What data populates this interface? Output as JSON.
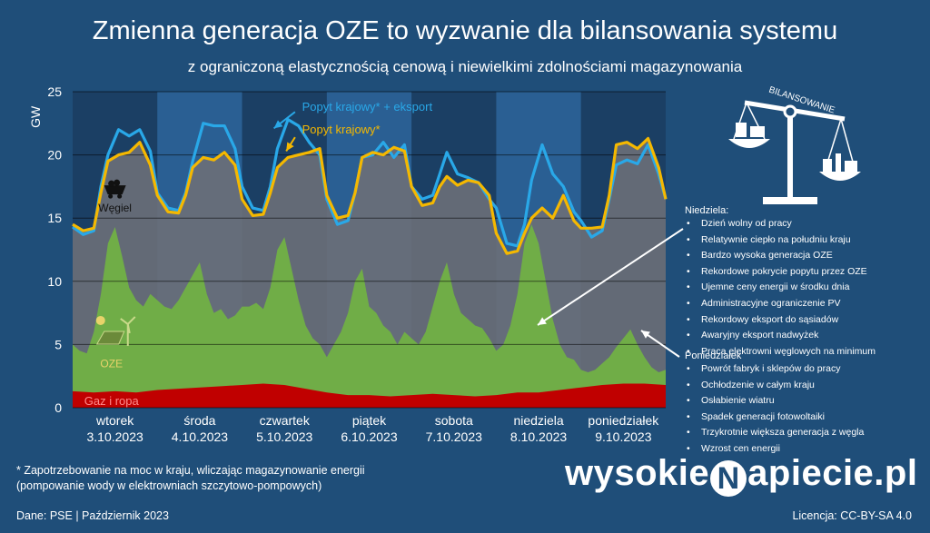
{
  "title": "Zmienna generacja OZE to wyzwanie dla bilansowania systemu",
  "subtitle": "z ograniczoną elastycznością cenową i niewielkimi zdolnościami magazynowania",
  "chart_data": {
    "type": "area",
    "ylabel": "GW",
    "ylim": [
      0,
      25
    ],
    "yticks": [
      0,
      5,
      10,
      15,
      20,
      25
    ],
    "grid": true,
    "categories": [
      {
        "day": "wtorek",
        "date": "3.10.2023"
      },
      {
        "day": "środa",
        "date": "4.10.2023"
      },
      {
        "day": "czwartek",
        "date": "5.10.2023"
      },
      {
        "day": "piątek",
        "date": "6.10.2023"
      },
      {
        "day": "sobota",
        "date": "7.10.2023"
      },
      {
        "day": "niedziela",
        "date": "8.10.2023"
      },
      {
        "day": "poniedziałek",
        "date": "9.10.2023"
      }
    ],
    "x_unit": "hours since start of 3.10.2023",
    "series": [
      {
        "name": "Popyt krajowy* + eksport",
        "type": "line",
        "color": "#29a8e8",
        "x": [
          0,
          3,
          6,
          8,
          10,
          13,
          16,
          19,
          22,
          24,
          27,
          30,
          32,
          34,
          37,
          40,
          43,
          46,
          48,
          51,
          54,
          56,
          58,
          61,
          64,
          67,
          70,
          72,
          75,
          78,
          80,
          82,
          85,
          88,
          91,
          94,
          96,
          99,
          102,
          104,
          106,
          109,
          112,
          115,
          118,
          120,
          123,
          126,
          128,
          130,
          133,
          136,
          139,
          142,
          144,
          147,
          150,
          152,
          154,
          157,
          160,
          163,
          166,
          168
        ],
        "values": [
          14.3,
          13.7,
          14,
          17.5,
          20,
          22,
          21.5,
          22,
          20.3,
          17,
          15.8,
          15.6,
          17,
          19.5,
          22.5,
          22.3,
          22.3,
          20.5,
          17.5,
          15.8,
          15.6,
          17.5,
          20.5,
          22.8,
          22.3,
          21,
          20,
          16.5,
          14.5,
          14.8,
          17,
          19.8,
          20,
          21,
          19.8,
          20.8,
          17.5,
          16.5,
          16.8,
          18.5,
          20.2,
          18.5,
          18.2,
          17.8,
          16.5,
          15.8,
          13,
          12.8,
          14.5,
          18,
          20.8,
          18.5,
          17.5,
          15.5,
          14.8,
          13.5,
          14,
          16.5,
          19.2,
          19.6,
          19.3,
          20.8,
          18.5,
          16.5
        ]
      },
      {
        "name": "Popyt krajowy*",
        "type": "line",
        "color": "#f5b800",
        "x": [
          0,
          3,
          6,
          8,
          10,
          13,
          16,
          19,
          22,
          24,
          27,
          30,
          32,
          34,
          37,
          40,
          43,
          46,
          48,
          51,
          54,
          56,
          58,
          61,
          64,
          67,
          70,
          72,
          75,
          78,
          80,
          82,
          85,
          88,
          91,
          94,
          96,
          99,
          102,
          104,
          106,
          109,
          112,
          115,
          118,
          120,
          123,
          126,
          128,
          130,
          133,
          136,
          139,
          142,
          144,
          147,
          150,
          152,
          154,
          157,
          160,
          163,
          166,
          168
        ],
        "values": [
          14.5,
          14,
          14.2,
          17,
          19.5,
          20,
          20.2,
          21,
          19.2,
          16.8,
          15.5,
          15.4,
          16.8,
          19,
          19.8,
          19.6,
          20.2,
          19.2,
          16.5,
          15.2,
          15.3,
          17,
          19,
          19.8,
          20,
          20.2,
          20.5,
          16.8,
          15,
          15.2,
          17,
          19.8,
          20.2,
          20,
          20.6,
          20.3,
          17.5,
          16,
          16.2,
          17.5,
          18.3,
          17.6,
          18,
          17.8,
          16.8,
          13.8,
          12.2,
          12.4,
          13.8,
          15,
          15.8,
          15,
          16.8,
          14.8,
          14.2,
          14.2,
          14.3,
          16.8,
          20.8,
          21,
          20.5,
          21.3,
          19,
          16.5
        ]
      },
      {
        "name": "Węgiel",
        "type": "area",
        "color": "#6b6f78",
        "x": [
          0,
          3,
          6,
          8,
          10,
          13,
          16,
          19,
          22,
          24,
          27,
          30,
          32,
          34,
          37,
          40,
          43,
          46,
          48,
          51,
          54,
          56,
          58,
          61,
          64,
          67,
          70,
          72,
          75,
          78,
          80,
          82,
          85,
          88,
          91,
          94,
          96,
          99,
          102,
          104,
          106,
          109,
          112,
          115,
          118,
          120,
          123,
          126,
          128,
          130,
          133,
          136,
          139,
          142,
          144,
          147,
          150,
          152,
          154,
          157,
          160,
          163,
          166,
          168
        ],
        "values": [
          14.5,
          14,
          14.2,
          17,
          19.5,
          20,
          20.2,
          21,
          19.2,
          16.8,
          15.5,
          15.4,
          16.8,
          19,
          19.8,
          19.6,
          20.2,
          19.2,
          16.5,
          15.2,
          15.3,
          17,
          19,
          19.8,
          20,
          20.2,
          20.5,
          16.8,
          15,
          15.2,
          17,
          19.8,
          20.2,
          20,
          20.6,
          20.3,
          17.5,
          16,
          16.2,
          17.5,
          18.3,
          17.6,
          18,
          17.8,
          16.8,
          13.8,
          12.2,
          12.4,
          13.8,
          15,
          15.8,
          15,
          16.8,
          14.8,
          14.2,
          14.2,
          14.3,
          16.8,
          20.8,
          21,
          20.5,
          21.3,
          19,
          16.5
        ]
      },
      {
        "name": "OZE",
        "type": "area",
        "color": "#70ad47",
        "x": [
          0,
          2,
          4,
          6,
          8,
          10,
          12,
          14,
          16,
          18,
          20,
          22,
          24,
          26,
          28,
          30,
          32,
          34,
          36,
          38,
          40,
          42,
          44,
          46,
          48,
          50,
          52,
          54,
          56,
          58,
          60,
          62,
          64,
          66,
          68,
          70,
          72,
          74,
          76,
          78,
          80,
          82,
          84,
          86,
          88,
          90,
          92,
          94,
          96,
          98,
          100,
          102,
          104,
          106,
          108,
          110,
          112,
          114,
          116,
          118,
          120,
          122,
          124,
          126,
          128,
          130,
          132,
          134,
          136,
          138,
          140,
          142,
          144,
          146,
          148,
          150,
          152,
          154,
          156,
          158,
          160,
          162,
          164,
          166,
          168
        ],
        "values": [
          5,
          4.5,
          4.3,
          6,
          9,
          13,
          14.3,
          12,
          9.5,
          8.5,
          8,
          9,
          8.5,
          8,
          7.8,
          8.5,
          9.5,
          10.5,
          11.5,
          9,
          7.5,
          7.8,
          7,
          7.3,
          8,
          8,
          8.3,
          7.8,
          9.5,
          12.5,
          13.5,
          11,
          8.5,
          6.5,
          5.5,
          5,
          4,
          5,
          6,
          7.5,
          10,
          11,
          8,
          7.5,
          6.5,
          6,
          5,
          6,
          5.5,
          5,
          6,
          8,
          10,
          11.5,
          9,
          7.5,
          7,
          6.5,
          6.3,
          5.5,
          4.5,
          5,
          6.5,
          9,
          13,
          14.5,
          13,
          10,
          7,
          5,
          4,
          3.8,
          3,
          2.8,
          3,
          3.5,
          4,
          4.8,
          5.5,
          6.2,
          5,
          4,
          3.2,
          2.8,
          3
        ]
      },
      {
        "name": "Gaz i ropa",
        "type": "area",
        "color": "#c00000",
        "x": [
          0,
          6,
          12,
          18,
          24,
          30,
          36,
          42,
          48,
          54,
          60,
          66,
          72,
          78,
          84,
          90,
          96,
          102,
          108,
          114,
          120,
          126,
          132,
          138,
          144,
          150,
          156,
          162,
          168
        ],
        "values": [
          1.3,
          1.2,
          1.3,
          1.2,
          1.4,
          1.5,
          1.6,
          1.7,
          1.8,
          1.9,
          1.8,
          1.5,
          1.2,
          1.0,
          1.0,
          0.9,
          1.0,
          1.1,
          1.0,
          0.9,
          1.0,
          1.2,
          1.2,
          1.4,
          1.6,
          1.8,
          1.9,
          1.9,
          1.8
        ]
      }
    ],
    "labels": {
      "coal": "Węgiel",
      "res": "OZE",
      "gas": "Gaz i ropa",
      "demand_export": "Popyt krajowy* + eksport",
      "demand": "Popyt krajowy*",
      "balancing": "BILANSOWANIE"
    }
  },
  "sunday": {
    "title": "Niedziela:",
    "items": [
      "Dzień wolny od pracy",
      "Relatywnie ciepło na południu kraju",
      "Bardzo wysoka generacja OZE",
      "Rekordowe pokrycie popytu przez OZE",
      "Ujemne ceny energii w środku dnia",
      "Administracyjne ograniczenie PV",
      "Rekordowy eksport do sąsiadów",
      "Awaryjny eksport nadwyżek",
      "Praca elektrowni węglowych na minimum"
    ]
  },
  "monday": {
    "title": "Poniedziałek",
    "items": [
      "Powrót fabryk i sklepów do pracy",
      "Ochłodzenie w całym kraju",
      "Osłabienie wiatru",
      "Spadek generacji fotowoltaiki",
      "Trzykrotnie większa generacja z węgla",
      "Wzrost cen energii"
    ]
  },
  "footnote_line1": "* Zapotrzebowanie na moc w kraju, wliczając magazynowanie energii",
  "footnote_line2": "(pompowanie wody w elektrowniach szczytowo-pompowych)",
  "source": "Dane: PSE  |  Październik 2023",
  "license": "Licencja: CC-BY-SA 4.0",
  "logo_left": "wysokie",
  "logo_n": "N",
  "logo_right": "apiecie.pl",
  "colors": {
    "background": "#1f4e79",
    "band_dark": "#1b3f64",
    "band_light": "#2a5f93"
  }
}
